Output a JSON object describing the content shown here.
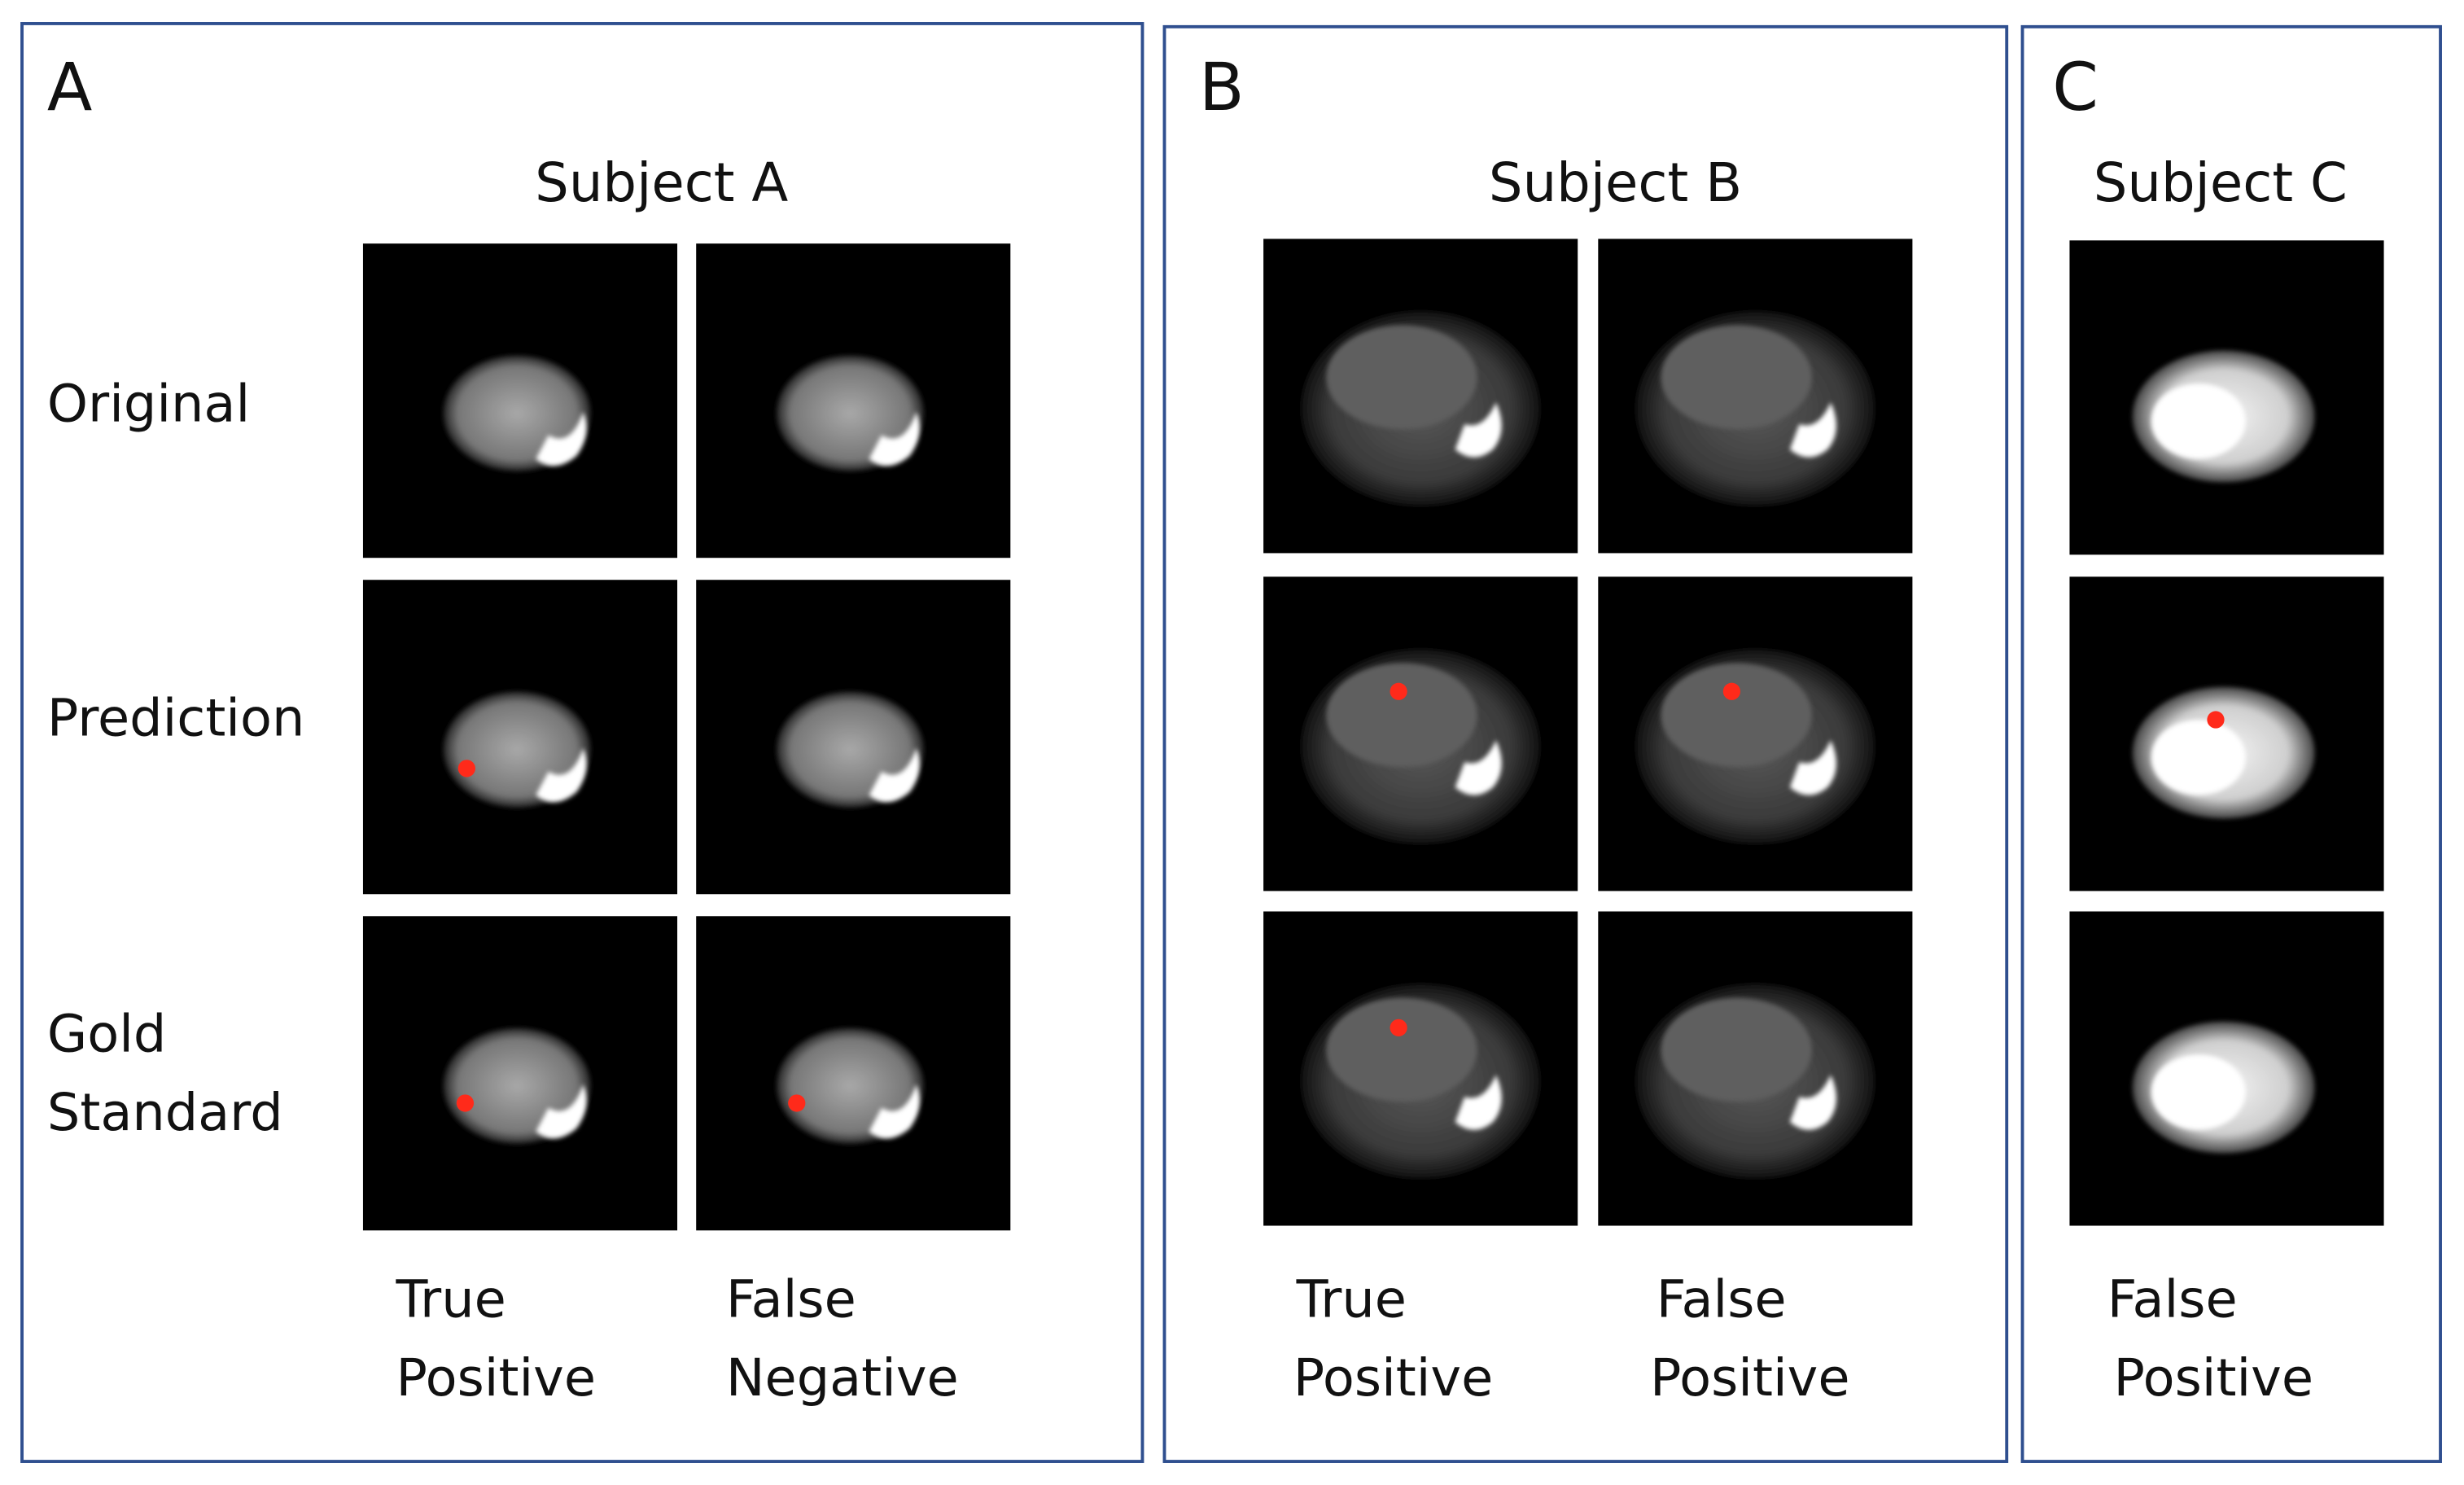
{
  "panels": [
    {
      "letter": "A",
      "subject": "Subject A",
      "row_labels": [
        [
          "Original"
        ],
        [
          "Prediction"
        ],
        [
          "Gold",
          "Standard"
        ]
      ],
      "captions": [
        [
          "True",
          "Positive"
        ],
        [
          "False",
          "Negative"
        ]
      ]
    },
    {
      "letter": "B",
      "subject": "Subject B",
      "captions": [
        [
          "True",
          "Positive"
        ],
        [
          "False",
          "Positive"
        ]
      ]
    },
    {
      "letter": "C",
      "subject": "Subject C",
      "captions": [
        [
          "False",
          "Positive"
        ]
      ]
    }
  ]
}
